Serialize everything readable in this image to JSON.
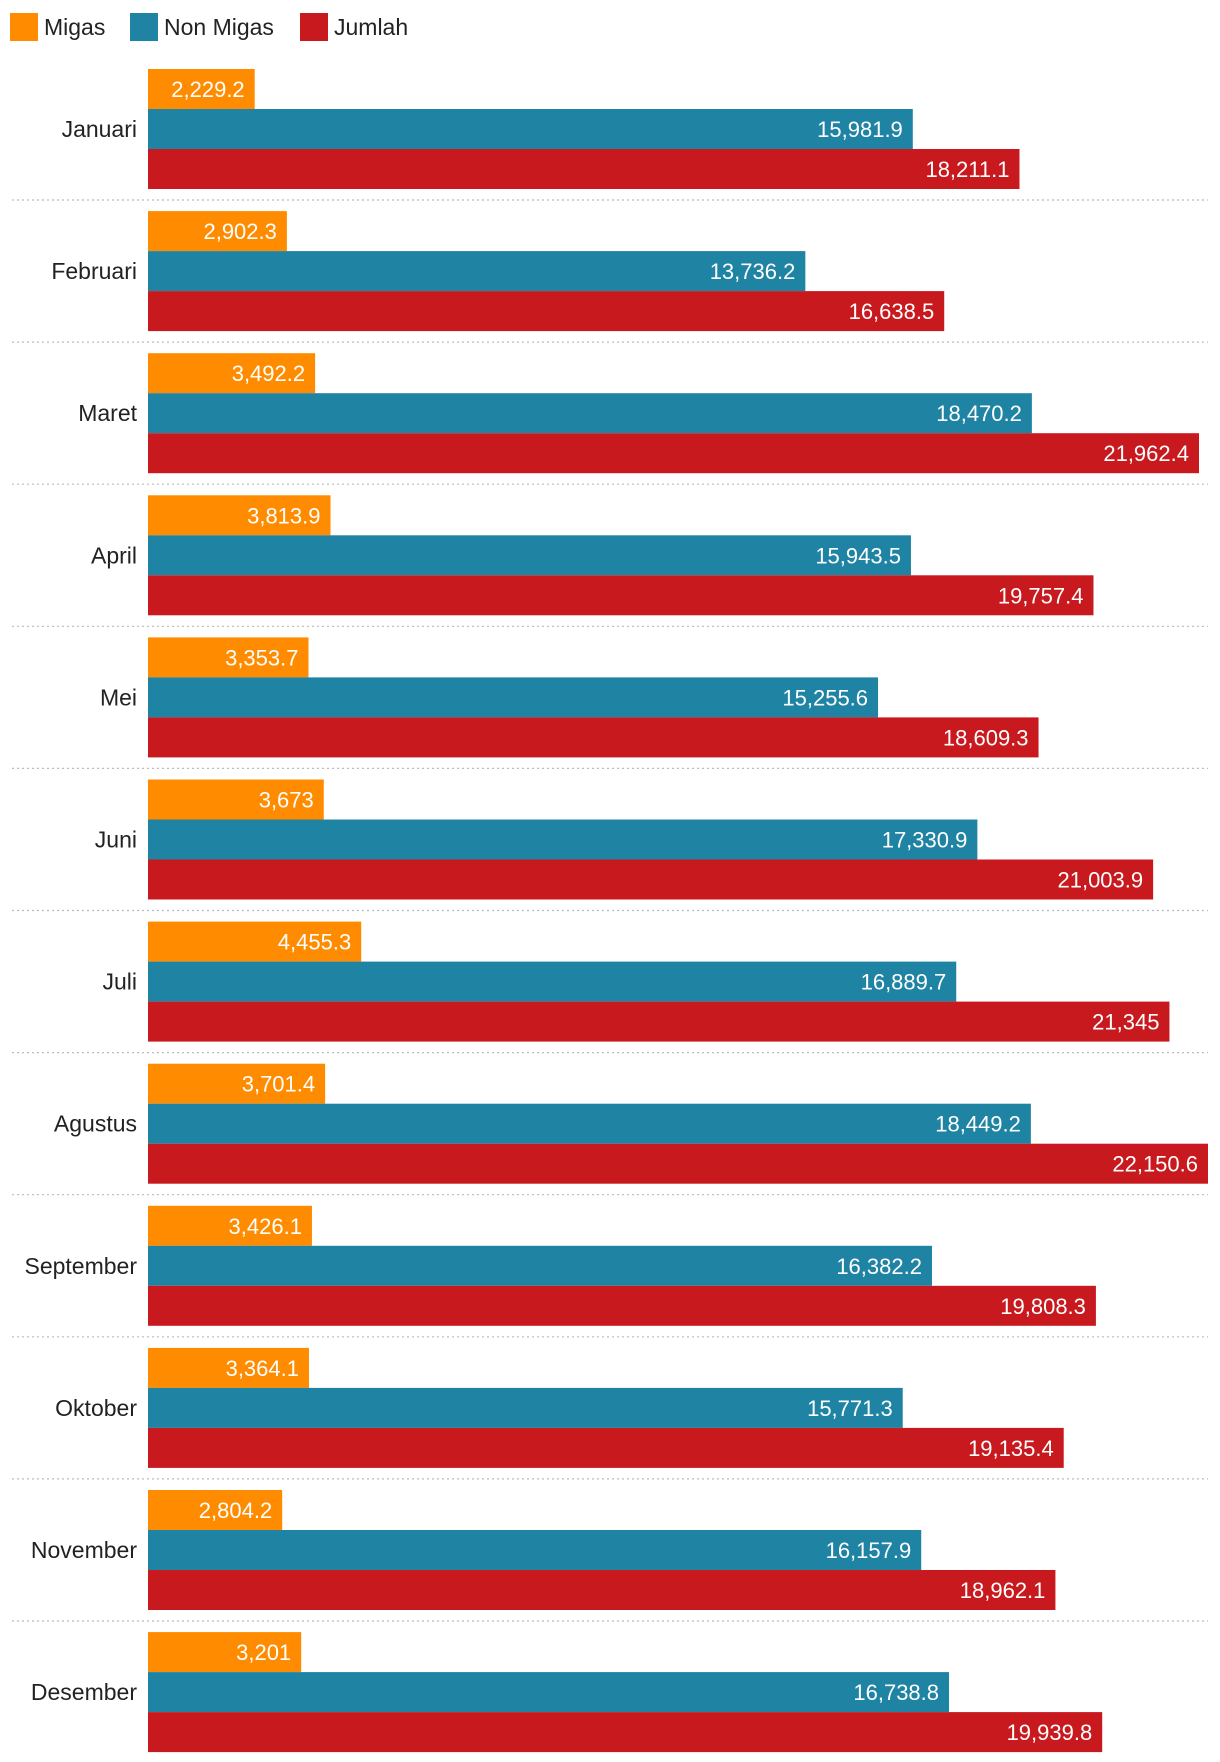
{
  "chart_data": {
    "type": "bar",
    "orientation": "horizontal",
    "grid": false,
    "legend_position": "top-left",
    "xlim": [
      0,
      22150.6
    ],
    "categories": [
      "Januari",
      "Februari",
      "Maret",
      "April",
      "Mei",
      "Juni",
      "Juli",
      "Agustus",
      "September",
      "Oktober",
      "November",
      "Desember"
    ],
    "series": [
      {
        "name": "Migas",
        "color": "#FF8C00",
        "values": [
          2229.2,
          2902.3,
          3492.2,
          3813.9,
          3353.7,
          3673,
          4455.3,
          3701.4,
          3426.1,
          3364.1,
          2804.2,
          3201
        ],
        "labels": [
          "2,229.2",
          "2,902.3",
          "3,492.2",
          "3,813.9",
          "3,353.7",
          "3,673",
          "4,455.3",
          "3,701.4",
          "3,426.1",
          "3,364.1",
          "2,804.2",
          "3,201"
        ]
      },
      {
        "name": "Non Migas",
        "color": "#1F83A3",
        "values": [
          15981.9,
          13736.2,
          18470.2,
          15943.5,
          15255.6,
          17330.9,
          16889.7,
          18449.2,
          16382.2,
          15771.3,
          16157.9,
          16738.8
        ],
        "labels": [
          "15,981.9",
          "13,736.2",
          "18,470.2",
          "15,943.5",
          "15,255.6",
          "17,330.9",
          "16,889.7",
          "18,449.2",
          "16,382.2",
          "15,771.3",
          "16,157.9",
          "16,738.8"
        ]
      },
      {
        "name": "Jumlah",
        "color": "#C8191E",
        "values": [
          18211.1,
          16638.5,
          21962.4,
          19757.4,
          18609.3,
          21003.9,
          21345,
          22150.6,
          19808.3,
          19135.4,
          18962.1,
          19939.8
        ],
        "labels": [
          "18,211.1",
          "16,638.5",
          "21,962.4",
          "19,757.4",
          "18,609.3",
          "21,003.9",
          "21,345",
          "22,150.6",
          "19,808.3",
          "19,135.4",
          "18,962.1",
          "19,939.8"
        ]
      }
    ]
  }
}
